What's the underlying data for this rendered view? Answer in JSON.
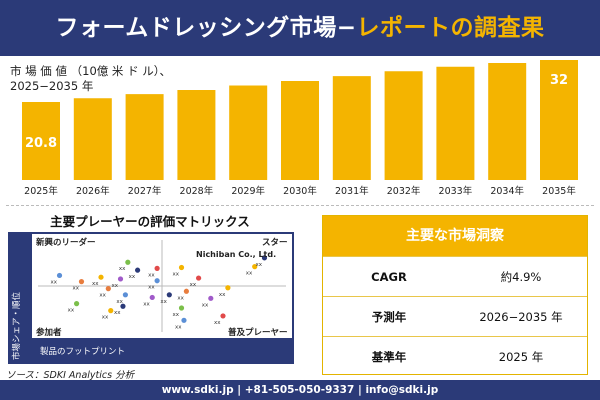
{
  "header": {
    "title_main": "フォームドレッシング市場−",
    "title_accent": "レポートの調査果"
  },
  "chart_note": {
    "line1": "市 場 価 値 （10億 米 ド ル）、",
    "line2": "2025−2035 年"
  },
  "chart_data": {
    "type": "bar",
    "categories": [
      "2025年",
      "2026年",
      "2027年",
      "2028年",
      "2029年",
      "2030年",
      "2031年",
      "2032年",
      "2033年",
      "2034年",
      "2035年"
    ],
    "values": [
      20.8,
      21.8,
      22.9,
      24.0,
      25.2,
      26.4,
      27.7,
      29.0,
      30.2,
      31.2,
      32.0
    ],
    "labels": [
      "20.8",
      "",
      "",
      "",
      "",
      "",
      "",
      "",
      "",
      "",
      "32"
    ],
    "bar_color": "#f4b400",
    "ylim": [
      0,
      32
    ]
  },
  "matrix": {
    "title": "主要プレーヤーの評価マトリックス",
    "q_top_left": "新興のリーダー",
    "q_top_right": "スター",
    "q_bottom_left": "参加者",
    "q_bottom_right": "普及プレーヤー",
    "x_label": "製品のフットプリント",
    "y_label": "市場シェア・順位",
    "highlight": "Nichiban Co., Ltd.",
    "point_marker": "xx",
    "points": [
      {
        "x": 0.08,
        "y": 0.62,
        "color": "#5b8fd6"
      },
      {
        "x": 0.17,
        "y": 0.55,
        "color": "#e87d3e"
      },
      {
        "x": 0.36,
        "y": 0.77,
        "color": "#7bbf4a"
      },
      {
        "x": 0.4,
        "y": 0.68,
        "color": "#2b3a78"
      },
      {
        "x": 0.48,
        "y": 0.7,
        "color": "#e14a4a"
      },
      {
        "x": 0.58,
        "y": 0.71,
        "color": "#f4b400"
      },
      {
        "x": 0.25,
        "y": 0.6,
        "color": "#f4b400"
      },
      {
        "x": 0.33,
        "y": 0.58,
        "color": "#a05ac9"
      },
      {
        "x": 0.48,
        "y": 0.56,
        "color": "#5b8fd6"
      },
      {
        "x": 0.65,
        "y": 0.59,
        "color": "#e14a4a"
      },
      {
        "x": 0.77,
        "y": 0.48,
        "color": "#f4b400"
      },
      {
        "x": 0.88,
        "y": 0.72,
        "color": "#f4b400"
      },
      {
        "x": 0.92,
        "y": 0.82,
        "color": "#2b3a78"
      },
      {
        "x": 0.28,
        "y": 0.47,
        "color": "#e87d3e"
      },
      {
        "x": 0.35,
        "y": 0.4,
        "color": "#5b8fd6"
      },
      {
        "x": 0.46,
        "y": 0.37,
        "color": "#a05ac9"
      },
      {
        "x": 0.53,
        "y": 0.4,
        "color": "#2b3a78"
      },
      {
        "x": 0.6,
        "y": 0.44,
        "color": "#e87d3e"
      },
      {
        "x": 0.7,
        "y": 0.36,
        "color": "#a05ac9"
      },
      {
        "x": 0.15,
        "y": 0.3,
        "color": "#7bbf4a"
      },
      {
        "x": 0.34,
        "y": 0.27,
        "color": "#2b3a78"
      },
      {
        "x": 0.58,
        "y": 0.25,
        "color": "#7bbf4a"
      },
      {
        "x": 0.75,
        "y": 0.16,
        "color": "#e14a4a"
      },
      {
        "x": 0.29,
        "y": 0.22,
        "color": "#f4b400"
      },
      {
        "x": 0.59,
        "y": 0.11,
        "color": "#5b8fd6"
      }
    ]
  },
  "source": "ソース：SDKI Analytics 分析",
  "insights": {
    "title": "主要な市場洞察",
    "rows": [
      {
        "label": "CAGR",
        "value": "約4.9%"
      },
      {
        "label": "予測年",
        "value": "2026−2035 年"
      },
      {
        "label": "基準年",
        "value": "2025 年"
      }
    ]
  },
  "footer": "www.sdki.jp | +81-505-050-9337 | info@sdki.jp"
}
